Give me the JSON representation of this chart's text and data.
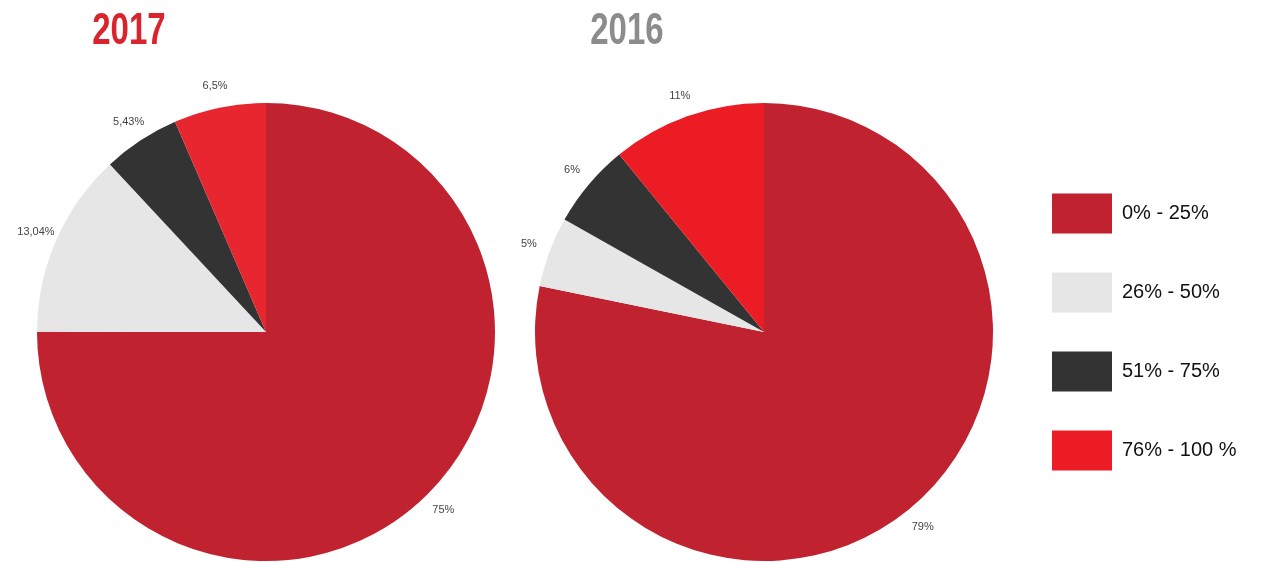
{
  "chart_data": [
    {
      "type": "pie",
      "title": "2017",
      "categories": [
        null,
        null,
        null,
        null
      ],
      "values": [
        75,
        13.04,
        5.43,
        6.5
      ],
      "colors": [
        "#c0232f",
        "#e6e6e6",
        "#333333",
        "#e8262f"
      ],
      "value_labels": [
        "75%",
        "13,04%",
        "5,43%",
        "6,5%"
      ]
    },
    {
      "type": "pie",
      "title": "2016",
      "categories": [
        "0% - 25%",
        "26% - 50%",
        "51% - 75%",
        "76% - 100 %"
      ],
      "values": [
        79,
        5,
        6,
        11
      ],
      "colors": [
        "#c0232f",
        "#e6e6e6",
        "#333333",
        "#ec1c24"
      ],
      "value_labels": [
        "79%",
        "5%",
        "6%",
        "11%"
      ],
      "legend": "right"
    }
  ]
}
